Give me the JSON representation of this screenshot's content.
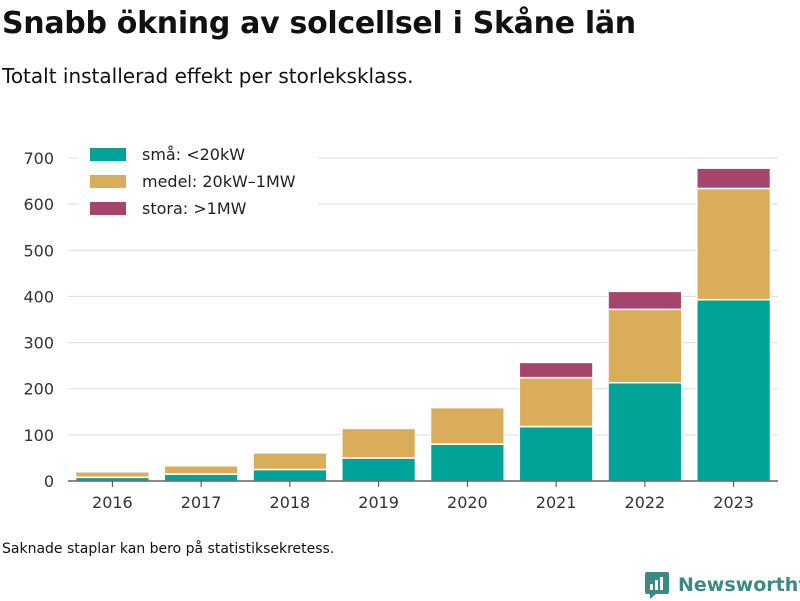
{
  "header": {
    "title": "Snabb ökning av solcellsel i Skåne län",
    "subtitle": "Totalt installerad effekt per storleksklass."
  },
  "footer": {
    "note": "Saknade staplar kan bero på statistiksekretess.",
    "brand": "Newsworthy",
    "brand_color": "#3c8a86"
  },
  "chart_data": {
    "type": "bar",
    "stacked": true,
    "categories": [
      "2016",
      "2017",
      "2018",
      "2019",
      "2020",
      "2021",
      "2022",
      "2023"
    ],
    "series": [
      {
        "name": "små: <20kW",
        "color": "#00a398",
        "values": [
          8,
          15,
          25,
          50,
          80,
          118,
          213,
          393
        ]
      },
      {
        "name": "medel: 20kW–1MW",
        "color": "#d9ad5a",
        "values": [
          12,
          18,
          36,
          64,
          79,
          106,
          159,
          241
        ]
      },
      {
        "name": "stora: >1MW",
        "color": "#a5456c",
        "values": [
          0,
          0,
          0,
          0,
          0,
          33,
          39,
          44
        ]
      }
    ],
    "ylim": [
      0,
      700
    ],
    "yticks": [
      0,
      100,
      200,
      300,
      400,
      500,
      600,
      700
    ],
    "grid": true,
    "legend_position": "top-left"
  }
}
